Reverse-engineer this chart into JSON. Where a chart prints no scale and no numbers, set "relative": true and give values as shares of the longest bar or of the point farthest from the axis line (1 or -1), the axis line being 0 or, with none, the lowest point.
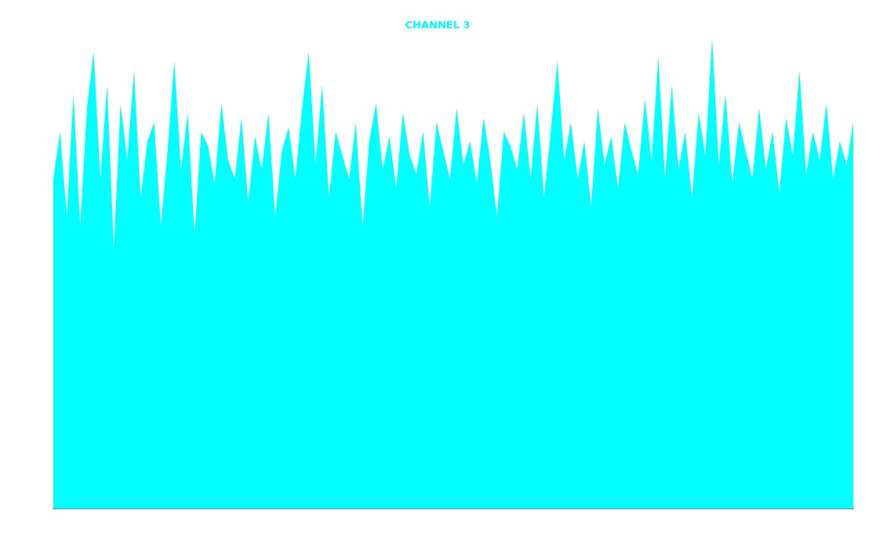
{
  "chart_data": {
    "type": "area",
    "title": "CHANNEL 3",
    "relative": true,
    "marker": "none",
    "categories": [
      null,
      null,
      null,
      null,
      null,
      null,
      null,
      null,
      null,
      null,
      null,
      null,
      null,
      null,
      null,
      null,
      null,
      null,
      null,
      null,
      null,
      null,
      null,
      null,
      null,
      null,
      null,
      null,
      null,
      null,
      null,
      null,
      null,
      null,
      null,
      null,
      null,
      null,
      null,
      null,
      null,
      null,
      null,
      null,
      null,
      null,
      null,
      null,
      null,
      null,
      null,
      null,
      null,
      null,
      null,
      null,
      null,
      null,
      null,
      null,
      null,
      null,
      null,
      null,
      null,
      null,
      null,
      null,
      null,
      null,
      null,
      null,
      null,
      null,
      null,
      null,
      null,
      null,
      null,
      null,
      null,
      null,
      null,
      null,
      null,
      null,
      null,
      null,
      null,
      null,
      null,
      null,
      null,
      null,
      null,
      null,
      null,
      null,
      null,
      null,
      null,
      null,
      null,
      null,
      null,
      null,
      null,
      null,
      null,
      null,
      null,
      null,
      null,
      null,
      null,
      null,
      null,
      null,
      null,
      null
    ],
    "series": [
      {
        "color": "#00ffff",
        "values": [
          0.7,
          0.8,
          0.62,
          0.88,
          0.6,
          0.85,
          0.97,
          0.7,
          0.9,
          0.55,
          0.86,
          0.74,
          0.93,
          0.66,
          0.78,
          0.82,
          0.6,
          0.76,
          0.95,
          0.72,
          0.84,
          0.58,
          0.8,
          0.77,
          0.69,
          0.86,
          0.74,
          0.7,
          0.83,
          0.65,
          0.79,
          0.72,
          0.84,
          0.62,
          0.76,
          0.81,
          0.7,
          0.85,
          0.97,
          0.73,
          0.9,
          0.66,
          0.8,
          0.75,
          0.7,
          0.82,
          0.6,
          0.78,
          0.86,
          0.72,
          0.79,
          0.68,
          0.84,
          0.75,
          0.71,
          0.8,
          0.64,
          0.82,
          0.76,
          0.7,
          0.85,
          0.73,
          0.78,
          0.69,
          0.83,
          0.74,
          0.62,
          0.8,
          0.77,
          0.72,
          0.84,
          0.7,
          0.86,
          0.66,
          0.8,
          0.95,
          0.74,
          0.82,
          0.7,
          0.78,
          0.64,
          0.85,
          0.73,
          0.79,
          0.68,
          0.82,
          0.76,
          0.71,
          0.87,
          0.74,
          0.96,
          0.7,
          0.9,
          0.72,
          0.8,
          0.66,
          0.84,
          0.75,
          1,
          0.73,
          0.88,
          0.69,
          0.82,
          0.76,
          0.7,
          0.85,
          0.72,
          0.8,
          0.67,
          0.83,
          0.75,
          0.93,
          0.71,
          0.8,
          0.74,
          0.86,
          0.7,
          0.78,
          0.73,
          0.82
        ]
      }
    ]
  }
}
